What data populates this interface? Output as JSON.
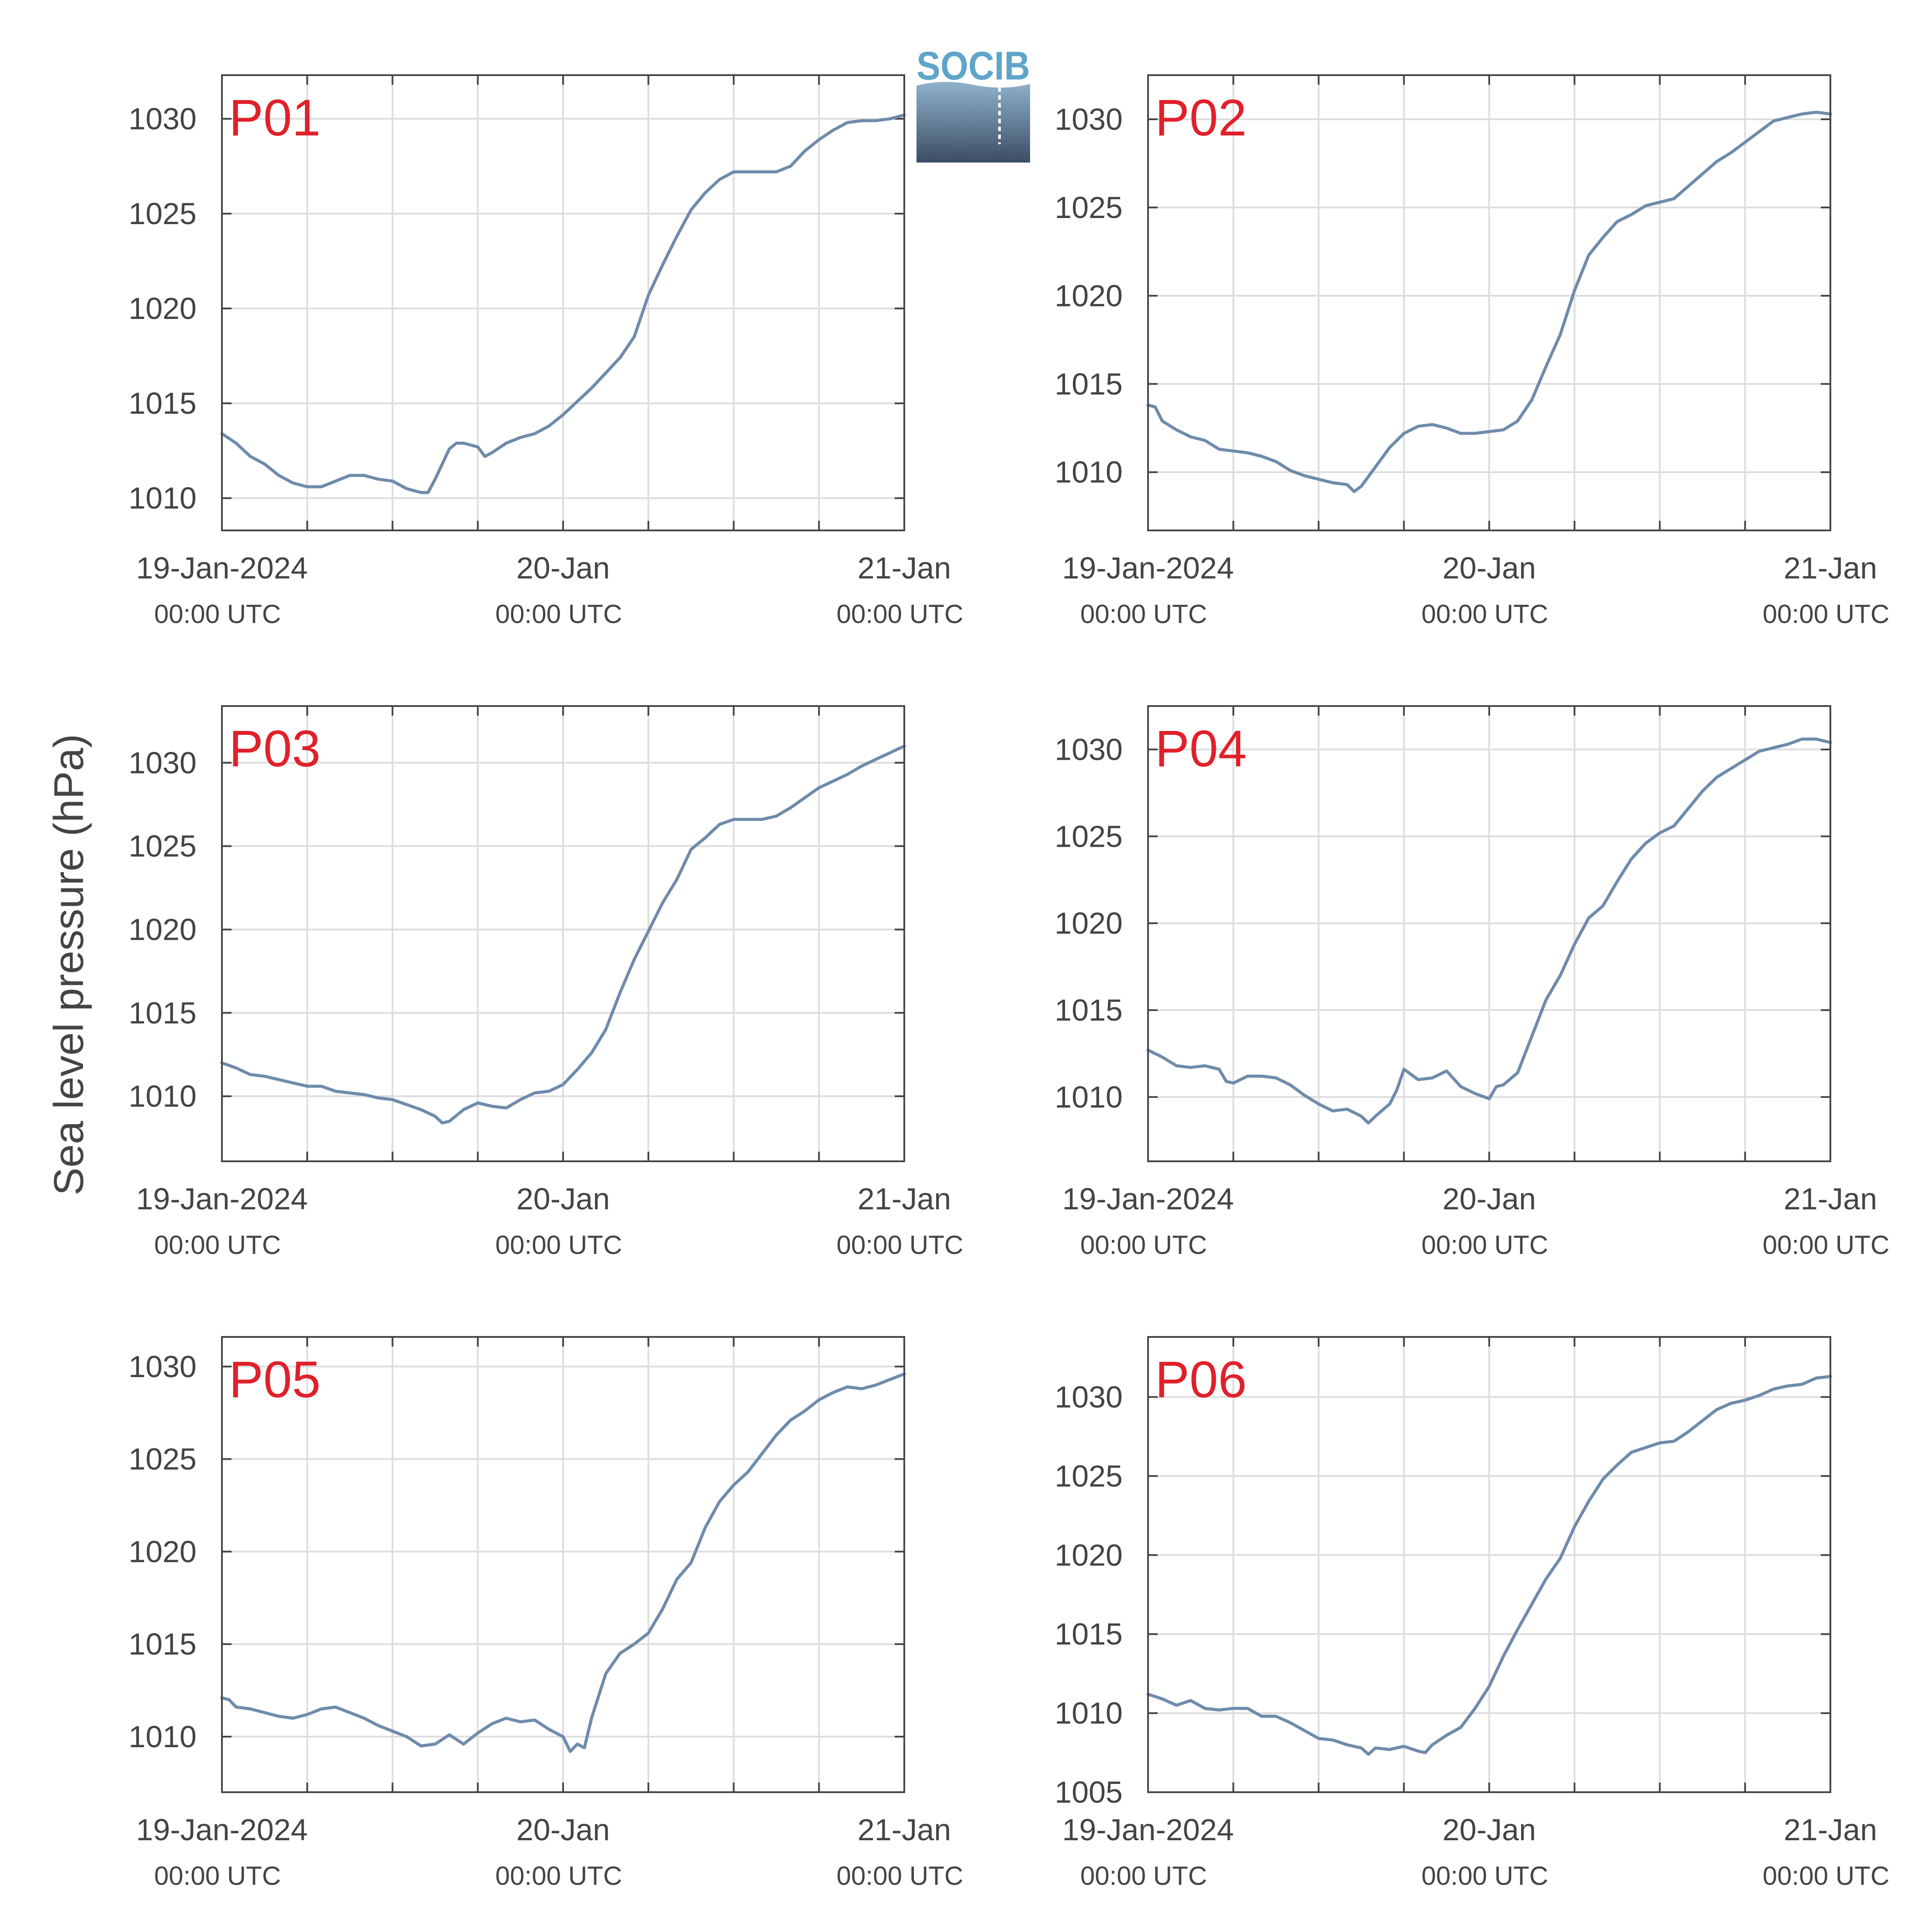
{
  "figure": {
    "ylabel": "Sea level pressure (hPa)",
    "logo_text": "SOCIB",
    "colors": {
      "line": "#6e8bab",
      "panel_label": "#e0202a",
      "grid": "#dddddd",
      "axis": "#444444"
    }
  },
  "chart_data": [
    {
      "type": "line",
      "label": "P01",
      "ylim": [
        1008.3,
        1032.3
      ],
      "yticks": [
        1010,
        1015,
        1020,
        1025,
        1030
      ],
      "xlim": [
        0,
        48
      ],
      "xticks": [
        {
          "t": 0,
          "date": "19-Jan-2024",
          "time": "00:00 UTC"
        },
        {
          "t": 24,
          "date": "20-Jan",
          "time": "00:00 UTC"
        },
        {
          "t": 48,
          "date": "21-Jan",
          "time": "00:00 UTC"
        }
      ],
      "series": [
        {
          "x": [
            0,
            1,
            2,
            3,
            4,
            5,
            6,
            7,
            8,
            9,
            10,
            11,
            12,
            13,
            14,
            14.5,
            15,
            16,
            16.5,
            17,
            18,
            18.5,
            19,
            20,
            21,
            22,
            23,
            24,
            25,
            26,
            27,
            28,
            29,
            30,
            31,
            32,
            33,
            34,
            35,
            36,
            37,
            38,
            39,
            40,
            41,
            42,
            43,
            44,
            45,
            46,
            47,
            48
          ],
          "y": [
            1013.4,
            1012.9,
            1012.2,
            1011.8,
            1011.2,
            1010.8,
            1010.6,
            1010.6,
            1010.9,
            1011.2,
            1011.2,
            1011.0,
            1010.9,
            1010.5,
            1010.3,
            1010.3,
            1011.0,
            1012.6,
            1012.9,
            1012.9,
            1012.7,
            1012.2,
            1012.4,
            1012.9,
            1013.2,
            1013.4,
            1013.8,
            1014.4,
            1015.1,
            1015.8,
            1016.6,
            1017.4,
            1018.5,
            1020.7,
            1022.3,
            1023.8,
            1025.2,
            1026.1,
            1026.8,
            1027.2,
            1027.2,
            1027.2,
            1027.2,
            1027.5,
            1028.3,
            1028.9,
            1029.4,
            1029.8,
            1029.9,
            1029.9,
            1030.0,
            1030.2
          ]
        }
      ]
    },
    {
      "type": "line",
      "label": "P02",
      "ylim": [
        1006.7,
        1032.5
      ],
      "yticks": [
        1010,
        1015,
        1020,
        1025,
        1030
      ],
      "xlim": [
        0,
        48
      ],
      "xticks": [
        {
          "t": 0,
          "date": "19-Jan-2024",
          "time": "00:00 UTC"
        },
        {
          "t": 24,
          "date": "20-Jan",
          "time": "00:00 UTC"
        },
        {
          "t": 48,
          "date": "21-Jan",
          "time": "00:00 UTC"
        }
      ],
      "series": [
        {
          "x": [
            0,
            0.5,
            1,
            2,
            3,
            4,
            5,
            6,
            7,
            8,
            9,
            10,
            11,
            12,
            13,
            14,
            14.5,
            15,
            16,
            17,
            18,
            19,
            20,
            21,
            22,
            23,
            24,
            25,
            26,
            27,
            28,
            29,
            30,
            31,
            32,
            33,
            34,
            35,
            36,
            37,
            38,
            39,
            40,
            41,
            42,
            43,
            44,
            45,
            46,
            47,
            48
          ],
          "y": [
            1013.8,
            1013.7,
            1012.9,
            1012.4,
            1012.0,
            1011.8,
            1011.3,
            1011.2,
            1011.1,
            1010.9,
            1010.6,
            1010.1,
            1009.8,
            1009.6,
            1009.4,
            1009.3,
            1008.9,
            1009.2,
            1010.3,
            1011.4,
            1012.2,
            1012.6,
            1012.7,
            1012.5,
            1012.2,
            1012.2,
            1012.3,
            1012.4,
            1012.9,
            1014.1,
            1016.0,
            1017.8,
            1020.3,
            1022.3,
            1023.3,
            1024.2,
            1024.6,
            1025.1,
            1025.3,
            1025.5,
            1026.2,
            1026.9,
            1027.6,
            1028.1,
            1028.7,
            1029.3,
            1029.9,
            1030.1,
            1030.3,
            1030.4,
            1030.3
          ]
        }
      ]
    },
    {
      "type": "line",
      "label": "P03",
      "ylim": [
        1006.1,
        1033.4
      ],
      "yticks": [
        1010,
        1015,
        1020,
        1025,
        1030
      ],
      "xlim": [
        0,
        48
      ],
      "xticks": [
        {
          "t": 0,
          "date": "19-Jan-2024",
          "time": "00:00 UTC"
        },
        {
          "t": 24,
          "date": "20-Jan",
          "time": "00:00 UTC"
        },
        {
          "t": 48,
          "date": "21-Jan",
          "time": "00:00 UTC"
        }
      ],
      "series": [
        {
          "x": [
            0,
            1,
            2,
            3,
            4,
            5,
            6,
            7,
            8,
            9,
            10,
            11,
            12,
            13,
            14,
            15,
            15.5,
            16,
            17,
            18,
            19,
            20,
            21,
            22,
            23,
            24,
            25,
            26,
            27,
            28,
            29,
            30,
            31,
            32,
            33,
            34,
            35,
            36,
            37,
            38,
            39,
            40,
            41,
            42,
            43,
            44,
            45,
            46,
            47,
            48
          ],
          "y": [
            1012.0,
            1011.7,
            1011.3,
            1011.2,
            1011.0,
            1010.8,
            1010.6,
            1010.6,
            1010.3,
            1010.2,
            1010.1,
            1009.9,
            1009.8,
            1009.5,
            1009.2,
            1008.8,
            1008.4,
            1008.5,
            1009.2,
            1009.6,
            1009.4,
            1009.3,
            1009.8,
            1010.2,
            1010.3,
            1010.7,
            1011.6,
            1012.6,
            1014.0,
            1016.2,
            1018.2,
            1019.9,
            1021.6,
            1023.0,
            1024.8,
            1025.5,
            1026.3,
            1026.6,
            1026.6,
            1026.6,
            1026.8,
            1027.3,
            1027.9,
            1028.5,
            1028.9,
            1029.3,
            1029.8,
            1030.2,
            1030.6,
            1031.0
          ]
        }
      ]
    },
    {
      "type": "line",
      "label": "P04",
      "ylim": [
        1006.3,
        1032.5
      ],
      "yticks": [
        1010,
        1015,
        1020,
        1025,
        1030
      ],
      "xlim": [
        0,
        48
      ],
      "xticks": [
        {
          "t": 0,
          "date": "19-Jan-2024",
          "time": "00:00 UTC"
        },
        {
          "t": 24,
          "date": "20-Jan",
          "time": "00:00 UTC"
        },
        {
          "t": 48,
          "date": "21-Jan",
          "time": "00:00 UTC"
        }
      ],
      "series": [
        {
          "x": [
            0,
            1,
            2,
            3,
            4,
            5,
            5.5,
            6,
            7,
            8,
            9,
            10,
            11,
            12,
            13,
            14,
            15,
            15.5,
            16,
            17,
            17.5,
            18,
            19,
            20,
            21,
            22,
            23,
            24,
            24.5,
            25,
            26,
            27,
            28,
            29,
            30,
            31,
            32,
            33,
            34,
            35,
            36,
            37,
            38,
            39,
            40,
            41,
            42,
            43,
            44,
            45,
            46,
            47,
            48
          ],
          "y": [
            1012.7,
            1012.3,
            1011.8,
            1011.7,
            1011.8,
            1011.6,
            1010.9,
            1010.8,
            1011.2,
            1011.2,
            1011.1,
            1010.7,
            1010.1,
            1009.6,
            1009.2,
            1009.3,
            1008.9,
            1008.5,
            1008.9,
            1009.6,
            1010.4,
            1011.6,
            1011.0,
            1011.1,
            1011.5,
            1010.6,
            1010.2,
            1009.9,
            1010.6,
            1010.7,
            1011.4,
            1013.5,
            1015.6,
            1017.0,
            1018.8,
            1020.3,
            1021.0,
            1022.4,
            1023.7,
            1024.6,
            1025.2,
            1025.6,
            1026.6,
            1027.6,
            1028.4,
            1028.9,
            1029.4,
            1029.9,
            1030.1,
            1030.3,
            1030.6,
            1030.6,
            1030.4
          ]
        }
      ]
    },
    {
      "type": "line",
      "label": "P05",
      "ylim": [
        1007.0,
        1031.6
      ],
      "yticks": [
        1010,
        1015,
        1020,
        1025,
        1030
      ],
      "xlim": [
        0,
        48
      ],
      "xticks": [
        {
          "t": 0,
          "date": "19-Jan-2024",
          "time": "00:00 UTC"
        },
        {
          "t": 24,
          "date": "20-Jan",
          "time": "00:00 UTC"
        },
        {
          "t": 48,
          "date": "21-Jan",
          "time": "00:00 UTC"
        }
      ],
      "series": [
        {
          "x": [
            0,
            0.5,
            1,
            2,
            3,
            4,
            5,
            6,
            7,
            8,
            9,
            10,
            11,
            12,
            13,
            14,
            15,
            16,
            17,
            18,
            19,
            20,
            21,
            22,
            23,
            24,
            24.5,
            25,
            25.5,
            26,
            27,
            28,
            29,
            30,
            31,
            32,
            33,
            34,
            35,
            36,
            37,
            38,
            39,
            40,
            41,
            42,
            43,
            44,
            45,
            46,
            47,
            48
          ],
          "y": [
            1012.1,
            1012.0,
            1011.6,
            1011.5,
            1011.3,
            1011.1,
            1011.0,
            1011.2,
            1011.5,
            1011.6,
            1011.3,
            1011.0,
            1010.6,
            1010.3,
            1010.0,
            1009.5,
            1009.6,
            1010.1,
            1009.6,
            1010.2,
            1010.7,
            1011.0,
            1010.8,
            1010.9,
            1010.4,
            1010.0,
            1009.2,
            1009.6,
            1009.4,
            1011.0,
            1013.4,
            1014.5,
            1015.0,
            1015.6,
            1016.9,
            1018.5,
            1019.4,
            1021.3,
            1022.7,
            1023.6,
            1024.3,
            1025.3,
            1026.3,
            1027.1,
            1027.6,
            1028.2,
            1028.6,
            1028.9,
            1028.8,
            1029.0,
            1029.3,
            1029.6
          ]
        }
      ]
    },
    {
      "type": "line",
      "label": "P06",
      "ylim": [
        1005.0,
        1033.8
      ],
      "yticks": [
        1005,
        1010,
        1015,
        1020,
        1025,
        1030
      ],
      "xlim": [
        0,
        48
      ],
      "xticks": [
        {
          "t": 0,
          "date": "19-Jan-2024",
          "time": "00:00 UTC"
        },
        {
          "t": 24,
          "date": "20-Jan",
          "time": "00:00 UTC"
        },
        {
          "t": 48,
          "date": "21-Jan",
          "time": "00:00 UTC"
        }
      ],
      "series": [
        {
          "x": [
            0,
            1,
            2,
            3,
            4,
            5,
            6,
            7,
            8,
            9,
            10,
            11,
            12,
            13,
            14,
            15,
            15.5,
            16,
            17,
            18,
            19,
            19.5,
            20,
            21,
            22,
            23,
            24,
            25,
            26,
            27,
            28,
            29,
            30,
            31,
            32,
            33,
            34,
            35,
            36,
            37,
            38,
            39,
            40,
            41,
            42,
            43,
            44,
            45,
            46,
            47,
            48
          ],
          "y": [
            1011.2,
            1010.9,
            1010.5,
            1010.8,
            1010.3,
            1010.2,
            1010.3,
            1010.3,
            1009.8,
            1009.8,
            1009.4,
            1008.9,
            1008.4,
            1008.3,
            1008.0,
            1007.8,
            1007.4,
            1007.8,
            1007.7,
            1007.9,
            1007.6,
            1007.5,
            1008.0,
            1008.6,
            1009.1,
            1010.3,
            1011.7,
            1013.6,
            1015.3,
            1016.9,
            1018.5,
            1019.8,
            1021.8,
            1023.4,
            1024.8,
            1025.7,
            1026.5,
            1026.8,
            1027.1,
            1027.2,
            1027.8,
            1028.5,
            1029.2,
            1029.6,
            1029.8,
            1030.1,
            1030.5,
            1030.7,
            1030.8,
            1031.2,
            1031.3
          ]
        }
      ]
    }
  ]
}
